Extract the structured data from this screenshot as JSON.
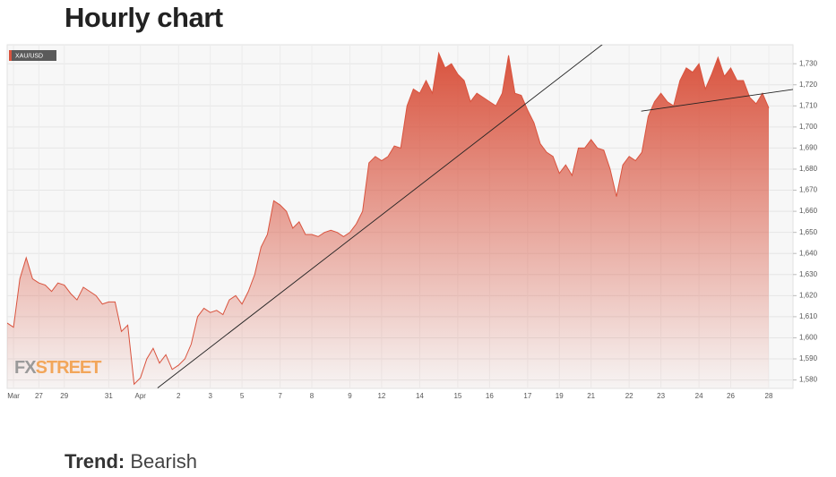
{
  "chart_data": {
    "type": "area",
    "title": "Hourly chart",
    "categories": [
      null,
      "Mar",
      null,
      null,
      null,
      "27",
      null,
      null,
      null,
      "29",
      null,
      null,
      null,
      null,
      null,
      null,
      "31",
      null,
      null,
      null,
      null,
      "Apr",
      null,
      null,
      null,
      null,
      null,
      "2",
      null,
      null,
      null,
      null,
      "3",
      null,
      null,
      null,
      null,
      "5",
      null,
      null,
      null,
      null,
      null,
      "7",
      null,
      null,
      null,
      null,
      "8",
      null,
      null,
      null,
      null,
      null,
      "9",
      null,
      null,
      null,
      null,
      "12",
      null,
      null,
      null,
      null,
      null,
      "14",
      null,
      null,
      null,
      null,
      null,
      "15",
      null,
      null,
      null,
      null,
      "16",
      null,
      null,
      null,
      null,
      null,
      "17",
      null,
      null,
      null,
      null,
      "19",
      null,
      null,
      null,
      null,
      "21",
      null,
      null,
      null,
      null,
      null,
      "22",
      null,
      null,
      null,
      null,
      "23",
      null,
      null,
      null,
      null,
      null,
      "24",
      null,
      null,
      null,
      null,
      "26",
      null,
      null,
      null,
      null,
      null,
      "28"
    ],
    "series": [
      {
        "name": "XAU/USD",
        "color": "#d9533e",
        "values": [
          1607,
          1605,
          1628,
          1638,
          1628,
          1626,
          1625,
          1622,
          1626,
          1625,
          1621,
          1618,
          1624,
          1622,
          1620,
          1616,
          1617,
          1617,
          1603,
          1606,
          1578,
          1581,
          1590,
          1595,
          1588,
          1592,
          1585,
          1587,
          1590,
          1597,
          1610,
          1614,
          1612,
          1613,
          1611,
          1618,
          1620,
          1616,
          1622,
          1630,
          1643,
          1649,
          1665,
          1663,
          1660,
          1652,
          1655,
          1649,
          1649,
          1648,
          1650,
          1651,
          1650,
          1648,
          1650,
          1654,
          1660,
          1683,
          1686,
          1684,
          1686,
          1691,
          1690,
          1710,
          1718,
          1716,
          1722,
          1716,
          1735,
          1728,
          1730,
          1725,
          1722,
          1712,
          1716,
          1714,
          1712,
          1710,
          1716,
          1734,
          1716,
          1715,
          1708,
          1702,
          1692,
          1688,
          1686,
          1678,
          1682,
          1677,
          1690,
          1690,
          1694,
          1690,
          1689,
          1680,
          1667,
          1682,
          1686,
          1684,
          1688,
          1705,
          1712,
          1716,
          1712,
          1710,
          1722,
          1728,
          1726,
          1730,
          1718,
          1725,
          1733,
          1724,
          1728,
          1722,
          1722,
          1714,
          1711,
          1716,
          1709
        ]
      }
    ],
    "trendlines": [
      {
        "x": [
          23.7,
          93.9
        ],
        "y": [
          1576.2,
          1739.4
        ]
      },
      {
        "x": [
          99.9,
          124.5
        ],
        "y": [
          1707.5,
          1718.1
        ]
      }
    ],
    "ylim": [
      1576,
      1739
    ],
    "yticks": [
      {
        "value": 1580,
        "label": "1,580"
      },
      {
        "value": 1590,
        "label": "1,590"
      },
      {
        "value": 1600,
        "label": "1,600"
      },
      {
        "value": 1610,
        "label": "1,610"
      },
      {
        "value": 1620,
        "label": "1,620"
      },
      {
        "value": 1630,
        "label": "1,630"
      },
      {
        "value": 1640,
        "label": "1,640"
      },
      {
        "value": 1650,
        "label": "1,650"
      },
      {
        "value": 1660,
        "label": "1,660"
      },
      {
        "value": 1670,
        "label": "1,670"
      },
      {
        "value": 1680,
        "label": "1,680"
      },
      {
        "value": 1690,
        "label": "1,690"
      },
      {
        "value": 1700,
        "label": "1,700"
      },
      {
        "value": 1710,
        "label": "1,710"
      },
      {
        "value": 1720,
        "label": "1,720"
      },
      {
        "value": 1730,
        "label": "1,730"
      }
    ],
    "grid": true,
    "watermark": [
      "FX",
      "STREET"
    ]
  },
  "trend": {
    "label": "Trend:",
    "value": "Bearish"
  }
}
